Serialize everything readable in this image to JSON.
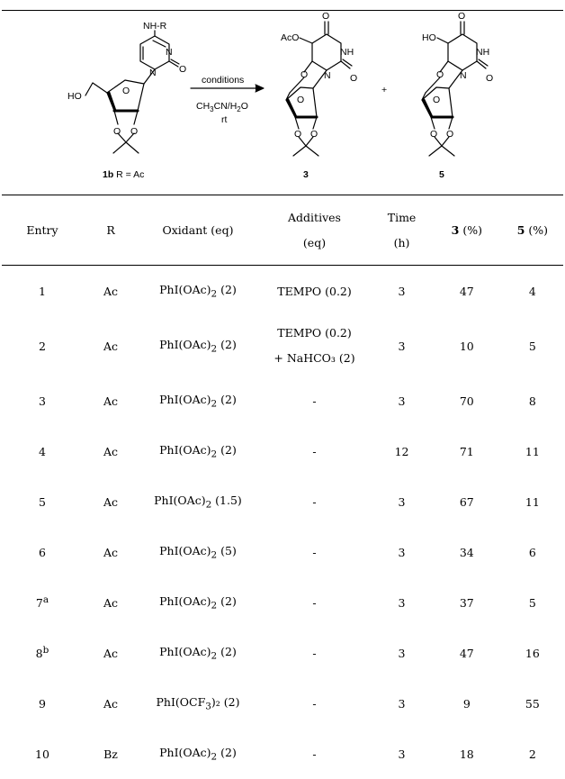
{
  "scheme": {
    "start_label_num": "1b",
    "start_label_rest": " R = Ac",
    "start_substituent": "NH-R",
    "start_hydroxyl": "HO",
    "conditions": "conditions",
    "solvent_a": "CH",
    "solvent_a_sub": "3",
    "solvent_b": "CN/H",
    "solvent_b_sub": "2",
    "solvent_c": "O",
    "temperature": "rt",
    "plus": "+",
    "product1_label": "3",
    "product1_group": "AcO",
    "product2_label": "5",
    "product2_group": "HO",
    "atom_N": "N",
    "atom_O": "O",
    "atom_NH": "NH"
  },
  "table": {
    "headers": {
      "entry": "Entry",
      "r": "R",
      "oxidant": "Oxidant (eq)",
      "additives_1": "Additives",
      "additives_2": "(eq)",
      "time_1": "Time",
      "time_2": "(h)",
      "p3_num": "3",
      "p3_unit": " (%)",
      "p5_num": "5",
      "p5_unit": " (%)"
    },
    "rows": [
      {
        "entry": "1",
        "sup": "",
        "r": "Ac",
        "oxidant": "PhI(OAc)",
        "ox_sub": "2",
        "ox_eq": " (2)",
        "additive": "TEMPO (0.2)",
        "additive2": "",
        "time": "3",
        "p3": "47",
        "p5": "4"
      },
      {
        "entry": "2",
        "sup": "",
        "r": "Ac",
        "oxidant": "PhI(OAc)",
        "ox_sub": "2",
        "ox_eq": " (2)",
        "additive": "TEMPO (0.2)",
        "additive2": "+ NaHCO₃ (2)",
        "time": "3",
        "p3": "10",
        "p5": "5"
      },
      {
        "entry": "3",
        "sup": "",
        "r": "Ac",
        "oxidant": "PhI(OAc)",
        "ox_sub": "2",
        "ox_eq": " (2)",
        "additive": "-",
        "additive2": "",
        "time": "3",
        "p3": "70",
        "p5": "8"
      },
      {
        "entry": "4",
        "sup": "",
        "r": "Ac",
        "oxidant": "PhI(OAc)",
        "ox_sub": "2",
        "ox_eq": " (2)",
        "additive": "-",
        "additive2": "",
        "time": "12",
        "p3": "71",
        "p5": "11"
      },
      {
        "entry": "5",
        "sup": "",
        "r": "Ac",
        "oxidant": "PhI(OAc)",
        "ox_sub": "2",
        "ox_eq": " (1.5)",
        "additive": "-",
        "additive2": "",
        "time": "3",
        "p3": "67",
        "p5": "11"
      },
      {
        "entry": "6",
        "sup": "",
        "r": "Ac",
        "oxidant": "PhI(OAc)",
        "ox_sub": "2",
        "ox_eq": " (5)",
        "additive": "-",
        "additive2": "",
        "time": "3",
        "p3": "34",
        "p5": "6"
      },
      {
        "entry": "7",
        "sup": "a",
        "r": "Ac",
        "oxidant": "PhI(OAc)",
        "ox_sub": "2",
        "ox_eq": " (2)",
        "additive": "-",
        "additive2": "",
        "time": "3",
        "p3": "37",
        "p5": "5"
      },
      {
        "entry": "8",
        "sup": "b",
        "r": "Ac",
        "oxidant": "PhI(OAc)",
        "ox_sub": "2",
        "ox_eq": " (2)",
        "additive": "-",
        "additive2": "",
        "time": "3",
        "p3": "47",
        "p5": "16"
      },
      {
        "entry": "9",
        "sup": "",
        "r": "Ac",
        "oxidant": "PhI(OCF",
        "ox_sub": "3",
        "ox_eq": ")₂ (2)",
        "additive": "-",
        "additive2": "",
        "time": "3",
        "p3": "9",
        "p5": "55"
      },
      {
        "entry": "10",
        "sup": "",
        "r": "Bz",
        "oxidant": "PhI(OAc)",
        "ox_sub": "2",
        "ox_eq": " (2)",
        "additive": "-",
        "additive2": "",
        "time": "3",
        "p3": "18",
        "p5": "2"
      }
    ]
  }
}
